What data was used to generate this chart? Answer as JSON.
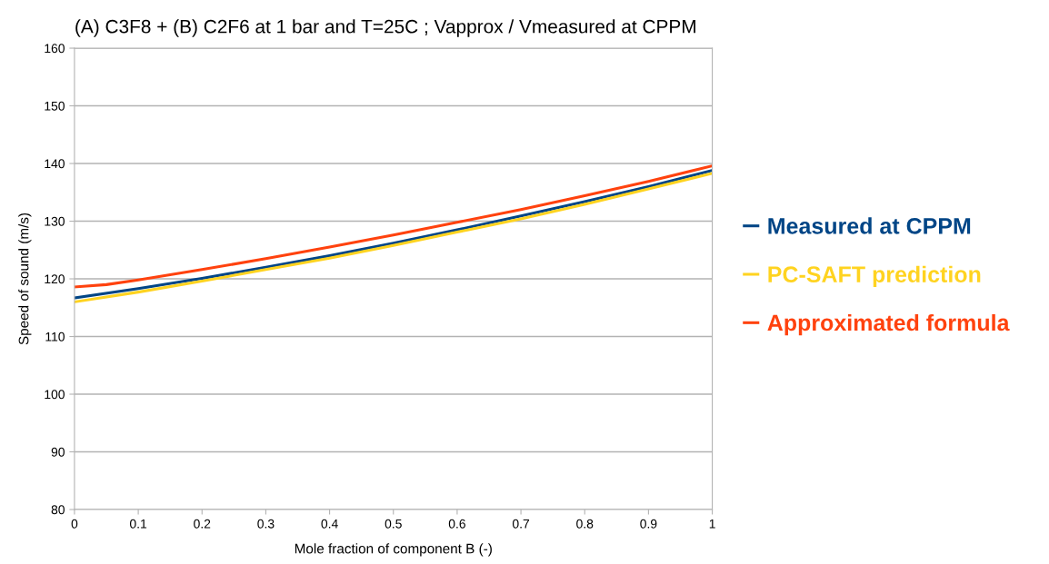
{
  "chart_data": {
    "type": "line",
    "title": "(A) C3F8 + (B) C2F6 at 1 bar and T=25C ; Vapprox / Vmeasured at CPPM",
    "xlabel": "Mole fraction of component B (-)",
    "ylabel": "Speed of sound (m/s)",
    "x": [
      0,
      0.1,
      0.2,
      0.3,
      0.4,
      0.5,
      0.6,
      0.7,
      0.8,
      0.9,
      1
    ],
    "series": [
      {
        "name": "Measured at CPPM",
        "color": "#004586",
        "values": [
          116.7,
          118.3,
          120.1,
          122.0,
          124.0,
          126.2,
          128.5,
          130.9,
          133.4,
          136.0,
          138.8
        ]
      },
      {
        "name": "PC-SAFT prediction",
        "color": "#ffd320",
        "values": [
          116.0,
          117.7,
          119.6,
          121.6,
          123.6,
          125.8,
          128.1,
          130.4,
          132.9,
          135.6,
          138.3
        ]
      },
      {
        "name": "Approximated formula",
        "color": "#ff420e",
        "x": [
          0,
          0.05,
          0.1,
          0.2,
          0.3,
          0.4,
          0.5,
          0.6,
          0.7,
          0.8,
          0.9,
          1
        ],
        "values": [
          118.6,
          119.0,
          119.8,
          121.6,
          123.5,
          125.5,
          127.6,
          129.8,
          132.0,
          134.4,
          136.9,
          139.6
        ]
      }
    ],
    "xlim": [
      0,
      1
    ],
    "xticks": [
      0,
      0.1,
      0.2,
      0.3,
      0.4,
      0.5,
      0.6,
      0.7,
      0.8,
      0.9,
      1
    ],
    "ylim": [
      80,
      160
    ],
    "yticks": [
      80,
      90,
      100,
      110,
      120,
      130,
      140,
      150,
      160
    ],
    "grid": "y",
    "legend": "right",
    "marker": "none",
    "line_style": "solid"
  }
}
